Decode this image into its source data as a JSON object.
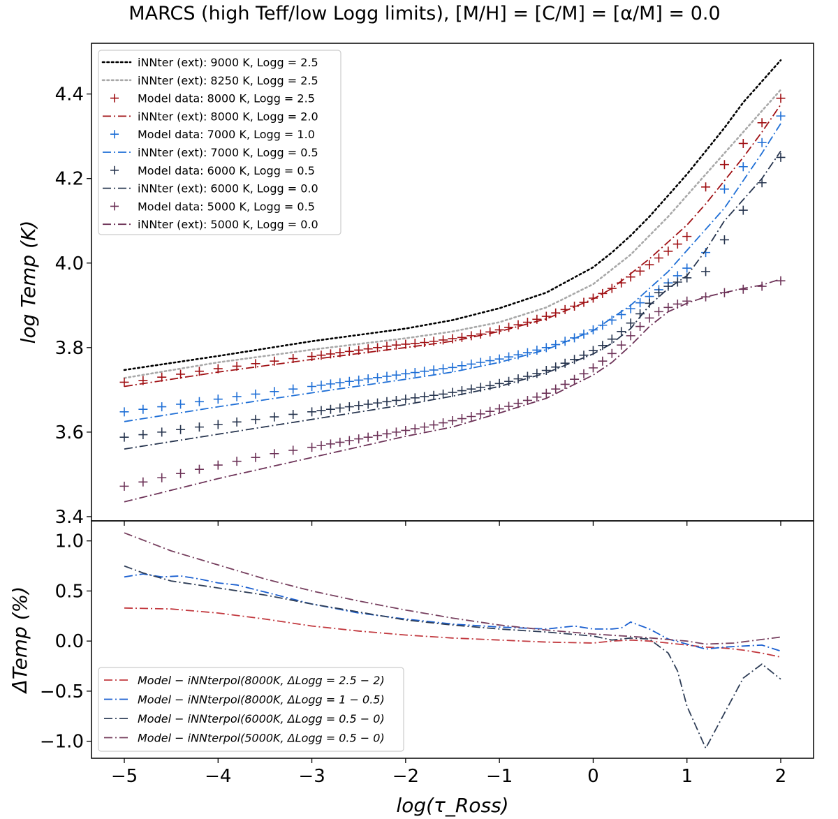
{
  "title": "MARCS (high Teff/low Logg limits), [M/H] = [C/M] = [α/M] = 0.0",
  "colors": {
    "black": "#000000",
    "gray": "#a8a8a8",
    "red8000": "#a01014",
    "blue7000": "#1f6fd6",
    "navy6000": "#26344e",
    "purple5000": "#6d3358",
    "diff8000": "#c2393f",
    "diff7000": "#1a5fd0",
    "diff6000": "#2f3e57",
    "diff5000": "#77405f"
  },
  "chart_data": [
    {
      "type": "line",
      "panel": "top",
      "ylabel": "log Temp (K)",
      "xlim": [
        -5.35,
        2.35
      ],
      "ylim": [
        3.39,
        4.52
      ],
      "xticks": [
        -5,
        -4,
        -3,
        -2,
        -1,
        0,
        1,
        2
      ],
      "yticks": [
        3.4,
        3.6,
        3.8,
        4.0,
        4.2,
        4.4
      ],
      "ytick_labels": [
        "3.4",
        "3.6",
        "3.8",
        "4.0",
        "4.2",
        "4.4"
      ],
      "legend_position": "upper-left",
      "series": [
        {
          "name": "iNNter (ext): 9000 K, Logg = 2.5",
          "kind": "line",
          "style": "dotted",
          "color": "black",
          "x": [
            -5,
            -4,
            -3,
            -2,
            -1.5,
            -1,
            -0.5,
            0,
            0.2,
            0.4,
            0.6,
            0.8,
            1.0,
            1.2,
            1.4,
            1.6,
            1.8,
            2.0
          ],
          "y": [
            3.747,
            3.78,
            3.815,
            3.845,
            3.865,
            3.893,
            3.93,
            3.99,
            4.025,
            4.065,
            4.11,
            4.16,
            4.21,
            4.265,
            4.32,
            4.38,
            4.43,
            4.48
          ]
        },
        {
          "name": "iNNter (ext): 8250 K, Logg = 2.5",
          "kind": "line",
          "style": "dotted",
          "color": "gray",
          "x": [
            -5,
            -4,
            -3,
            -2,
            -1.5,
            -1,
            -0.5,
            0,
            0.2,
            0.4,
            0.6,
            0.8,
            1.0,
            1.2,
            1.4,
            1.6,
            1.8,
            2.0
          ],
          "y": [
            3.728,
            3.765,
            3.795,
            3.822,
            3.838,
            3.86,
            3.895,
            3.95,
            3.985,
            4.02,
            4.065,
            4.11,
            4.16,
            4.21,
            4.26,
            4.31,
            4.36,
            4.41
          ]
        },
        {
          "name": "Model data:  8000 K, Logg = 2.5",
          "kind": "markers",
          "color": "red8000",
          "x": [
            -5,
            -4.8,
            -4.6,
            -4.4,
            -4.2,
            -4,
            -3.8,
            -3.6,
            -3.4,
            -3.2,
            -3,
            -2.9,
            -2.8,
            -2.7,
            -2.6,
            -2.5,
            -2.4,
            -2.3,
            -2.2,
            -2.1,
            -2,
            -1.9,
            -1.8,
            -1.7,
            -1.6,
            -1.5,
            -1.4,
            -1.3,
            -1.2,
            -1.1,
            -1,
            -0.9,
            -0.8,
            -0.7,
            -0.6,
            -0.5,
            -0.4,
            -0.3,
            -0.2,
            -0.1,
            0,
            0.1,
            0.2,
            0.3,
            0.4,
            0.5,
            0.6,
            0.7,
            0.8,
            0.9,
            1.0,
            1.2,
            1.4,
            1.6,
            1.8,
            2.0
          ],
          "y": [
            3.718,
            3.722,
            3.73,
            3.737,
            3.744,
            3.75,
            3.756,
            3.762,
            3.768,
            3.774,
            3.779,
            3.782,
            3.785,
            3.788,
            3.791,
            3.794,
            3.797,
            3.8,
            3.803,
            3.806,
            3.808,
            3.81,
            3.812,
            3.815,
            3.818,
            3.821,
            3.824,
            3.828,
            3.832,
            3.837,
            3.842,
            3.848,
            3.854,
            3.86,
            3.867,
            3.874,
            3.882,
            3.89,
            3.898,
            3.907,
            3.917,
            3.928,
            3.94,
            3.953,
            3.967,
            3.981,
            3.996,
            4.012,
            4.028,
            4.045,
            4.063,
            4.18,
            4.233,
            4.283,
            4.332,
            4.39
          ]
        },
        {
          "name": "iNNter (ext): 8000 K, Logg = 2.0",
          "kind": "line",
          "style": "dashdot",
          "color": "red8000",
          "x": [
            -5,
            -4,
            -3,
            -2,
            -1.5,
            -1,
            -0.5,
            0,
            0.2,
            0.4,
            0.6,
            0.8,
            1.0,
            1.2,
            1.4,
            1.6,
            1.8,
            2.0
          ],
          "y": [
            3.708,
            3.742,
            3.772,
            3.8,
            3.815,
            3.838,
            3.868,
            3.915,
            3.94,
            3.975,
            4.01,
            4.05,
            4.09,
            4.14,
            4.195,
            4.25,
            4.31,
            4.375
          ]
        },
        {
          "name": "Model data:  7000 K, Logg = 1.0",
          "kind": "markers",
          "color": "blue7000",
          "x": [
            -5,
            -4.8,
            -4.6,
            -4.4,
            -4.2,
            -4,
            -3.8,
            -3.6,
            -3.4,
            -3.2,
            -3,
            -2.9,
            -2.8,
            -2.7,
            -2.6,
            -2.5,
            -2.4,
            -2.3,
            -2.2,
            -2.1,
            -2,
            -1.9,
            -1.8,
            -1.7,
            -1.6,
            -1.5,
            -1.4,
            -1.3,
            -1.2,
            -1.1,
            -1,
            -0.9,
            -0.8,
            -0.7,
            -0.6,
            -0.5,
            -0.4,
            -0.3,
            -0.2,
            -0.1,
            0,
            0.1,
            0.2,
            0.3,
            0.4,
            0.5,
            0.6,
            0.7,
            0.8,
            0.9,
            1.0,
            1.2,
            1.4,
            1.6,
            1.8,
            2.0
          ],
          "y": [
            3.648,
            3.654,
            3.66,
            3.666,
            3.672,
            3.678,
            3.684,
            3.69,
            3.696,
            3.702,
            3.708,
            3.711,
            3.714,
            3.717,
            3.72,
            3.723,
            3.726,
            3.729,
            3.732,
            3.735,
            3.738,
            3.741,
            3.744,
            3.747,
            3.75,
            3.753,
            3.757,
            3.761,
            3.765,
            3.769,
            3.773,
            3.778,
            3.783,
            3.788,
            3.794,
            3.8,
            3.807,
            3.815,
            3.823,
            3.832,
            3.842,
            3.853,
            3.865,
            3.878,
            3.892,
            3.906,
            3.921,
            3.937,
            3.953,
            3.97,
            3.988,
            4.025,
            4.175,
            4.228,
            4.285,
            4.348
          ]
        },
        {
          "name": "iNNter (ext): 7000 K, Logg = 0.5",
          "kind": "line",
          "style": "dashdot",
          "color": "blue7000",
          "x": [
            -5,
            -4,
            -3,
            -2,
            -1.5,
            -1,
            -0.5,
            0,
            0.2,
            0.4,
            0.6,
            0.8,
            1.0,
            1.2,
            1.4,
            1.6,
            1.8,
            2.0
          ],
          "y": [
            3.625,
            3.66,
            3.693,
            3.725,
            3.742,
            3.765,
            3.795,
            3.84,
            3.87,
            3.9,
            3.94,
            3.98,
            4.03,
            4.08,
            4.13,
            4.195,
            4.26,
            4.33
          ]
        },
        {
          "name": "Model data:  6000 K, Logg = 0.5",
          "kind": "markers",
          "color": "navy6000",
          "x": [
            -5,
            -4.8,
            -4.6,
            -4.4,
            -4.2,
            -4,
            -3.8,
            -3.6,
            -3.4,
            -3.2,
            -3,
            -2.9,
            -2.8,
            -2.7,
            -2.6,
            -2.5,
            -2.4,
            -2.3,
            -2.2,
            -2.1,
            -2,
            -1.9,
            -1.8,
            -1.7,
            -1.6,
            -1.5,
            -1.4,
            -1.3,
            -1.2,
            -1.1,
            -1,
            -0.9,
            -0.8,
            -0.7,
            -0.6,
            -0.5,
            -0.4,
            -0.3,
            -0.2,
            -0.1,
            0,
            0.1,
            0.2,
            0.3,
            0.4,
            0.5,
            0.6,
            0.7,
            0.8,
            0.9,
            1.0,
            1.2,
            1.4,
            1.6,
            1.8,
            2.0
          ],
          "y": [
            3.588,
            3.594,
            3.6,
            3.606,
            3.612,
            3.618,
            3.624,
            3.63,
            3.636,
            3.642,
            3.648,
            3.651,
            3.654,
            3.657,
            3.66,
            3.663,
            3.666,
            3.669,
            3.672,
            3.675,
            3.678,
            3.681,
            3.684,
            3.687,
            3.69,
            3.694,
            3.698,
            3.702,
            3.706,
            3.71,
            3.715,
            3.72,
            3.726,
            3.732,
            3.739,
            3.746,
            3.754,
            3.763,
            3.772,
            3.782,
            3.793,
            3.805,
            3.82,
            3.838,
            3.858,
            3.88,
            3.905,
            3.93,
            3.945,
            3.955,
            3.965,
            3.98,
            4.055,
            4.125,
            4.19,
            4.25
          ]
        },
        {
          "name": "iNNter (ext): 6000 K, Logg = 0.0",
          "kind": "line",
          "style": "dashdot",
          "color": "navy6000",
          "x": [
            -5,
            -4,
            -3,
            -2,
            -1.5,
            -1,
            -0.5,
            0,
            0.2,
            0.4,
            0.6,
            0.8,
            1.0,
            1.2,
            1.4,
            1.6,
            1.8,
            2.0
          ],
          "y": [
            3.56,
            3.595,
            3.63,
            3.665,
            3.685,
            3.708,
            3.74,
            3.785,
            3.81,
            3.845,
            3.9,
            3.94,
            3.97,
            4.03,
            4.1,
            4.15,
            4.2,
            4.265
          ]
        },
        {
          "name": "Model data:  5000 K, Logg = 0.5",
          "kind": "markers",
          "color": "purple5000",
          "x": [
            -5,
            -4.8,
            -4.6,
            -4.4,
            -4.2,
            -4,
            -3.8,
            -3.6,
            -3.4,
            -3.2,
            -3,
            -2.9,
            -2.8,
            -2.7,
            -2.6,
            -2.5,
            -2.4,
            -2.3,
            -2.2,
            -2.1,
            -2,
            -1.9,
            -1.8,
            -1.7,
            -1.6,
            -1.5,
            -1.4,
            -1.3,
            -1.2,
            -1.1,
            -1,
            -0.9,
            -0.8,
            -0.7,
            -0.6,
            -0.5,
            -0.4,
            -0.3,
            -0.2,
            -0.1,
            0,
            0.1,
            0.2,
            0.3,
            0.4,
            0.5,
            0.6,
            0.7,
            0.8,
            0.9,
            1.0,
            1.2,
            1.4,
            1.6,
            1.8,
            2.0
          ],
          "y": [
            3.472,
            3.482,
            3.492,
            3.502,
            3.512,
            3.522,
            3.531,
            3.54,
            3.549,
            3.557,
            3.564,
            3.568,
            3.572,
            3.576,
            3.58,
            3.584,
            3.588,
            3.592,
            3.596,
            3.6,
            3.604,
            3.608,
            3.612,
            3.617,
            3.622,
            3.627,
            3.632,
            3.637,
            3.643,
            3.649,
            3.655,
            3.661,
            3.668,
            3.675,
            3.683,
            3.692,
            3.702,
            3.713,
            3.725,
            3.738,
            3.752,
            3.768,
            3.786,
            3.806,
            3.828,
            3.85,
            3.87,
            3.885,
            3.895,
            3.903,
            3.91,
            3.92,
            3.93,
            3.938,
            3.945,
            3.958
          ]
        },
        {
          "name": "iNNter (ext): 5000 K, Logg = 0.0",
          "kind": "line",
          "style": "dashdot",
          "color": "purple5000",
          "x": [
            -5,
            -4,
            -3,
            -2,
            -1.5,
            -1,
            -0.5,
            0,
            0.2,
            0.4,
            0.6,
            0.8,
            1.0,
            1.2,
            1.4,
            1.6,
            1.8,
            2.0
          ],
          "y": [
            3.435,
            3.49,
            3.54,
            3.59,
            3.612,
            3.645,
            3.68,
            3.735,
            3.765,
            3.805,
            3.85,
            3.885,
            3.905,
            3.92,
            3.93,
            3.94,
            3.948,
            3.962
          ]
        }
      ]
    },
    {
      "type": "line",
      "panel": "bottom",
      "xlabel": "log(τ_Ross)",
      "ylabel": "ΔTemp (%)",
      "xlim": [
        -5.35,
        2.35
      ],
      "ylim": [
        -1.17,
        1.2
      ],
      "xticks": [
        -5,
        -4,
        -3,
        -2,
        -1,
        0,
        1,
        2
      ],
      "xtick_labels": [
        "−5",
        "−4",
        "−3",
        "−2",
        "−1",
        "0",
        "1",
        "2"
      ],
      "yticks": [
        -1.0,
        -0.5,
        0.0,
        0.5,
        1.0
      ],
      "ytick_labels": [
        "−1.0",
        "−0.5",
        "0.0",
        "0.5",
        "1.0"
      ],
      "legend_position": "lower-left",
      "series": [
        {
          "name": "Model − iNNterpol(8000K, ΔLogg = 2.5 − 2)",
          "color": "diff8000",
          "x": [
            -5,
            -4.5,
            -4,
            -3.5,
            -3,
            -2.5,
            -2,
            -1.5,
            -1,
            -0.5,
            0,
            0.2,
            0.4,
            0.6,
            0.8,
            1.0,
            1.2,
            1.4,
            1.6,
            1.8,
            2.0
          ],
          "y": [
            0.33,
            0.32,
            0.28,
            0.22,
            0.15,
            0.1,
            0.06,
            0.03,
            0.01,
            -0.01,
            -0.02,
            0.0,
            0.01,
            0.0,
            -0.02,
            -0.04,
            -0.06,
            -0.07,
            -0.09,
            -0.12,
            -0.16
          ]
        },
        {
          "name": "Model − iNNterpol(8000K, ΔLogg = 1 − 0.5)",
          "color": "diff7000",
          "x": [
            -5,
            -4.8,
            -4.6,
            -4.4,
            -4.2,
            -4,
            -3.8,
            -3.5,
            -3,
            -2.5,
            -2,
            -1.5,
            -1,
            -0.5,
            -0.2,
            0,
            0.2,
            0.3,
            0.4,
            0.6,
            0.8,
            1.0,
            1.2,
            1.4,
            1.6,
            1.8,
            2.0
          ],
          "y": [
            0.64,
            0.67,
            0.64,
            0.65,
            0.62,
            0.58,
            0.56,
            0.49,
            0.37,
            0.28,
            0.22,
            0.17,
            0.14,
            0.12,
            0.15,
            0.12,
            0.12,
            0.13,
            0.19,
            0.12,
            0.02,
            -0.03,
            -0.08,
            -0.06,
            -0.05,
            -0.04,
            -0.1
          ]
        },
        {
          "name": "Model − iNNterpol(6000K, ΔLogg = 0.5 − 0)",
          "color": "diff6000",
          "x": [
            -5,
            -4.8,
            -4.5,
            -4,
            -3.5,
            -3,
            -2.5,
            -2,
            -1.5,
            -1,
            -0.5,
            0,
            0.2,
            0.4,
            0.6,
            0.8,
            0.9,
            1.0,
            1.2,
            1.4,
            1.6,
            1.8,
            2.0
          ],
          "y": [
            0.75,
            0.68,
            0.6,
            0.53,
            0.46,
            0.37,
            0.29,
            0.21,
            0.16,
            0.12,
            0.09,
            0.05,
            0.01,
            0.03,
            0.02,
            -0.12,
            -0.3,
            -0.65,
            -1.07,
            -0.72,
            -0.37,
            -0.23,
            -0.38
          ]
        },
        {
          "name": "Model − iNNterpol(5000K, ΔLogg = 0.5 − 0)",
          "color": "diff5000",
          "x": [
            -5,
            -4.5,
            -4,
            -3.5,
            -3,
            -2.5,
            -2,
            -1.5,
            -1,
            -0.5,
            0,
            0.5,
            1.0,
            1.2,
            1.5,
            2.0
          ],
          "y": [
            1.08,
            0.9,
            0.76,
            0.62,
            0.5,
            0.4,
            0.31,
            0.23,
            0.16,
            0.11,
            0.07,
            0.04,
            0.0,
            -0.03,
            -0.02,
            0.04
          ]
        }
      ]
    }
  ]
}
